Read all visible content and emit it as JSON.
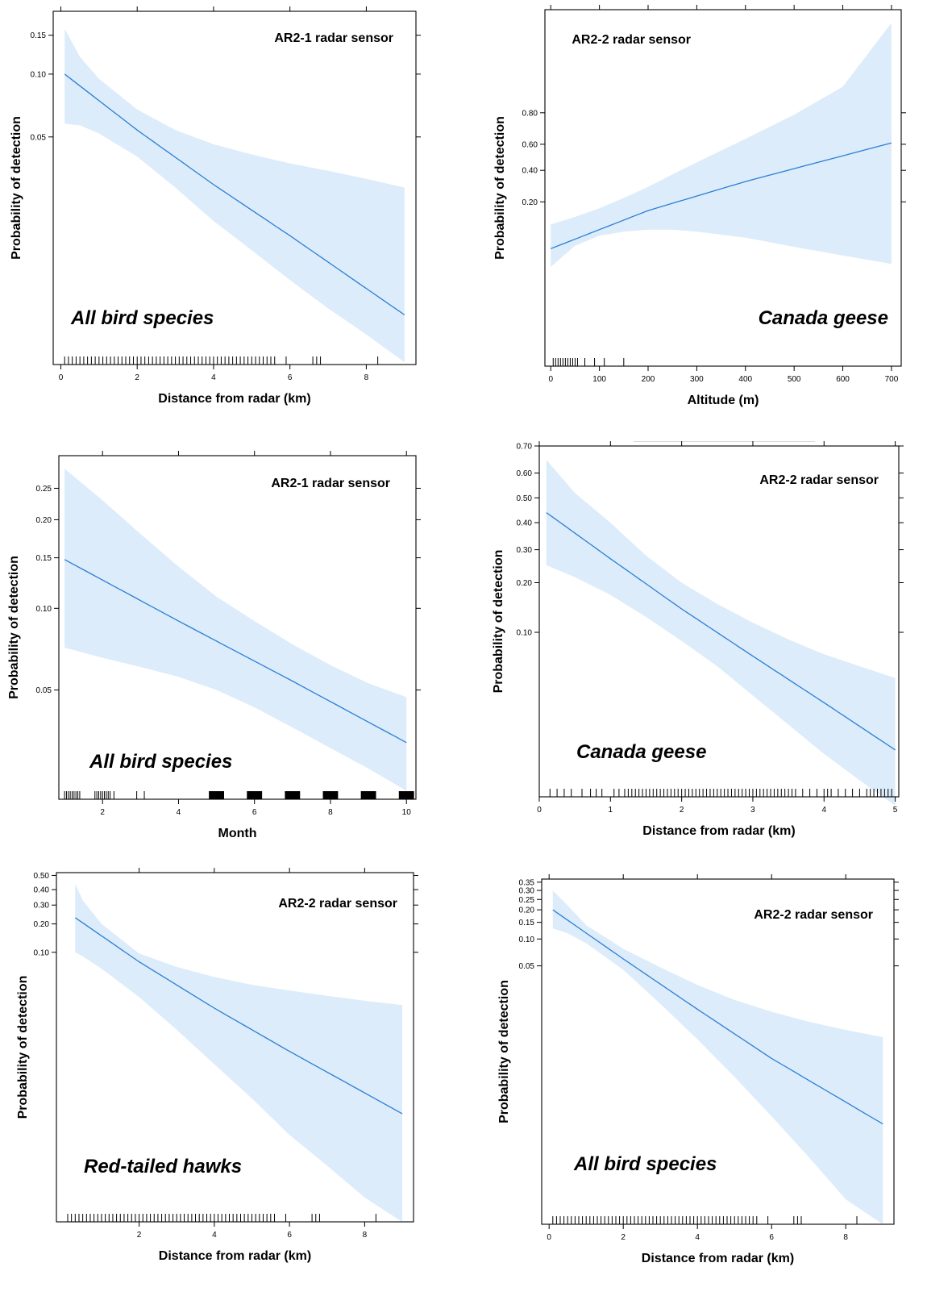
{
  "colors": {
    "band": "#dcecfa",
    "line": "#2b7fd4",
    "frame": "#000000",
    "text": "#000000"
  },
  "chart_data": [
    {
      "type": "line",
      "title": "AR2-1 radar sensor",
      "annotation": "All bird species",
      "xlabel": "Distance from radar (km)",
      "ylabel": "Probability of detection",
      "x_ticks": [
        0,
        2,
        4,
        6,
        8
      ],
      "y_ticks": [
        0.05,
        0.1,
        0.15
      ],
      "y_scale": "logit",
      "xlim": [
        -0.2,
        9.3
      ],
      "ylim": [
        0.0035,
        0.19
      ],
      "series": [
        {
          "x": [
            0.1,
            2,
            4,
            6,
            9
          ],
          "y": [
            0.1,
            0.054,
            0.029,
            0.016,
            0.0063
          ]
        }
      ],
      "ci_lower": {
        "x": [
          0.1,
          0.5,
          1,
          2,
          3,
          4,
          5,
          6,
          7,
          8,
          9
        ],
        "y": [
          0.058,
          0.057,
          0.052,
          0.04,
          0.028,
          0.019,
          0.0135,
          0.0095,
          0.0068,
          0.005,
          0.0036
        ]
      },
      "ci_upper": {
        "x": [
          0.1,
          0.5,
          1,
          2,
          3,
          4,
          5,
          6,
          7,
          8,
          9
        ],
        "y": [
          0.16,
          0.12,
          0.095,
          0.068,
          0.054,
          0.046,
          0.041,
          0.037,
          0.034,
          0.031,
          0.028
        ]
      },
      "rug": [
        0.1,
        0.2,
        0.3,
        0.4,
        0.5,
        0.6,
        0.7,
        0.8,
        0.9,
        1.0,
        1.1,
        1.2,
        1.3,
        1.4,
        1.5,
        1.6,
        1.7,
        1.8,
        1.9,
        2.0,
        2.1,
        2.2,
        2.3,
        2.4,
        2.5,
        2.6,
        2.7,
        2.8,
        2.9,
        3.0,
        3.1,
        3.2,
        3.3,
        3.4,
        3.5,
        3.6,
        3.7,
        3.8,
        3.9,
        4.0,
        4.1,
        4.2,
        4.3,
        4.4,
        4.5,
        4.6,
        4.7,
        4.8,
        4.9,
        5.0,
        5.1,
        5.2,
        5.3,
        5.4,
        5.5,
        5.6,
        5.9,
        6.6,
        6.7,
        6.8,
        8.3
      ],
      "grid": false,
      "legend": "none"
    },
    {
      "type": "line",
      "title": "AR2-2 radar sensor",
      "annotation": "Canada geese",
      "xlabel": "Altitude (m)",
      "ylabel": "Probability of detection",
      "x_ticks": [
        0,
        100,
        200,
        300,
        400,
        500,
        600,
        700
      ],
      "y_ticks": [
        0.2,
        0.4,
        0.6,
        0.8
      ],
      "y_scale": "logit",
      "xlim": [
        -12,
        720
      ],
      "ylim": [
        0.0015,
        0.99
      ],
      "series": [
        {
          "x": [
            0,
            200,
            400,
            700
          ],
          "y": [
            0.055,
            0.16,
            0.32,
            0.61
          ]
        }
      ],
      "ci_lower": {
        "x": [
          0,
          50,
          100,
          150,
          200,
          250,
          300,
          400,
          500,
          600,
          700
        ],
        "y": [
          0.032,
          0.06,
          0.08,
          0.09,
          0.095,
          0.095,
          0.09,
          0.076,
          0.058,
          0.045,
          0.035
        ]
      },
      "ci_upper": {
        "x": [
          0,
          50,
          100,
          150,
          200,
          250,
          300,
          400,
          500,
          600,
          700
        ],
        "y": [
          0.11,
          0.135,
          0.17,
          0.22,
          0.285,
          0.37,
          0.46,
          0.64,
          0.79,
          0.9,
          0.985
        ]
      },
      "rug": [
        5,
        10,
        15,
        20,
        25,
        30,
        35,
        40,
        45,
        50,
        55,
        70,
        90,
        110,
        150
      ],
      "grid": false,
      "legend": "none"
    },
    {
      "type": "line",
      "title": "AR2-1 radar sensor",
      "annotation": "All bird species",
      "xlabel": "Month",
      "ylabel": "Probability of detection",
      "x_ticks": [
        2,
        4,
        6,
        8,
        10
      ],
      "y_ticks": [
        0.05,
        0.1,
        0.15,
        0.2,
        0.25
      ],
      "y_scale": "logit",
      "xlim": [
        0.85,
        10.25
      ],
      "ylim": [
        0.019,
        0.31
      ],
      "series": [
        {
          "x": [
            1,
            4,
            7,
            10
          ],
          "y": [
            0.148,
            0.09,
            0.054,
            0.0315
          ]
        }
      ],
      "ci_lower": {
        "x": [
          1,
          2,
          3,
          4,
          5,
          6,
          7,
          8,
          9,
          10
        ],
        "y": [
          0.072,
          0.066,
          0.061,
          0.056,
          0.05,
          0.043,
          0.036,
          0.03,
          0.025,
          0.0205
        ]
      },
      "ci_upper": {
        "x": [
          1,
          2,
          3,
          4,
          5,
          6,
          7,
          8,
          9,
          10
        ],
        "y": [
          0.285,
          0.23,
          0.18,
          0.14,
          0.11,
          0.09,
          0.074,
          0.062,
          0.053,
          0.047
        ]
      },
      "rug": [
        1.0,
        1.05,
        1.1,
        1.15,
        1.2,
        1.25,
        1.3,
        1.35,
        1.4,
        1.8,
        1.85,
        1.9,
        1.95,
        2.0,
        2.05,
        2.1,
        2.15,
        2.2,
        2.3,
        2.9,
        3.1
      ],
      "rug_blocks": [
        [
          4.8,
          5.2
        ],
        [
          5.8,
          6.2
        ],
        [
          6.8,
          7.2
        ],
        [
          7.8,
          8.2
        ],
        [
          8.8,
          9.2
        ],
        [
          9.8,
          10.2
        ]
      ],
      "grid": false,
      "legend": "none"
    },
    {
      "type": "line",
      "title": "AR2-2 radar sensor",
      "annotation": "Canada geese",
      "xlabel": "Distance from radar (km)",
      "ylabel": "Probability of detection",
      "x_ticks": [
        0,
        1,
        2,
        3,
        4,
        5
      ],
      "y_ticks": [
        0.1,
        0.2,
        0.3,
        0.4,
        0.5,
        0.6,
        0.7
      ],
      "y_scale": "logit",
      "xlim": [
        0,
        5.05
      ],
      "ylim": [
        0.0075,
        0.7
      ],
      "series": [
        {
          "x": [
            0.1,
            1,
            2,
            3,
            4,
            5
          ],
          "y": [
            0.44,
            0.27,
            0.14,
            0.07,
            0.034,
            0.016
          ]
        }
      ],
      "ci_lower": {
        "x": [
          0.1,
          0.5,
          1,
          1.5,
          2,
          2.5,
          3,
          3.5,
          4,
          4.5,
          5
        ],
        "y": [
          0.25,
          0.215,
          0.17,
          0.125,
          0.088,
          0.06,
          0.038,
          0.024,
          0.015,
          0.0098,
          0.0065
        ]
      },
      "ci_upper": {
        "x": [
          0.1,
          0.5,
          1,
          1.5,
          2,
          2.5,
          3,
          3.5,
          4,
          4.5,
          5
        ],
        "y": [
          0.65,
          0.52,
          0.4,
          0.28,
          0.2,
          0.15,
          0.115,
          0.09,
          0.072,
          0.06,
          0.05
        ]
      },
      "rug": [
        0.15,
        0.25,
        0.35,
        0.45,
        0.6,
        0.72,
        0.8,
        0.88,
        1.05,
        1.12,
        1.2,
        1.25,
        1.3,
        1.35,
        1.4,
        1.45,
        1.5,
        1.55,
        1.6,
        1.65,
        1.7,
        1.75,
        1.8,
        1.85,
        1.9,
        1.95,
        2.0,
        2.05,
        2.1,
        2.15,
        2.2,
        2.25,
        2.3,
        2.35,
        2.4,
        2.45,
        2.5,
        2.55,
        2.6,
        2.65,
        2.7,
        2.75,
        2.8,
        2.85,
        2.9,
        2.95,
        3.0,
        3.05,
        3.1,
        3.15,
        3.2,
        3.25,
        3.3,
        3.35,
        3.4,
        3.45,
        3.5,
        3.55,
        3.6,
        3.7,
        3.8,
        3.9,
        4.0,
        4.05,
        4.1,
        4.2,
        4.3,
        4.4,
        4.5,
        4.6,
        4.65,
        4.7,
        4.75,
        4.8,
        4.85,
        4.9,
        4.95
      ],
      "grid": false,
      "legend": "none"
    },
    {
      "type": "line",
      "title": "AR2-2 radar sensor",
      "annotation": "Red-tailed hawks",
      "xlabel": "Distance from radar (km)",
      "ylabel": "Probability of detection",
      "x_ticks": [
        2,
        4,
        6,
        8
      ],
      "y_ticks": [
        0.1,
        0.2,
        0.3,
        0.4,
        0.5
      ],
      "y_scale": "logit",
      "xlim": [
        -0.2,
        9.3
      ],
      "ylim": [
        5e-05,
        0.52
      ],
      "series": [
        {
          "x": [
            0.3,
            2,
            4,
            6,
            9
          ],
          "y": [
            0.23,
            0.078,
            0.022,
            0.0065,
            0.0011
          ]
        }
      ],
      "ci_lower": {
        "x": [
          0.3,
          0.5,
          1,
          2,
          3,
          4,
          5,
          6,
          7,
          8,
          9
        ],
        "y": [
          0.1,
          0.09,
          0.065,
          0.03,
          0.012,
          0.0045,
          0.0017,
          0.0006,
          0.00025,
          0.0001,
          5e-05
        ]
      },
      "ci_upper": {
        "x": [
          0.3,
          0.5,
          1,
          2,
          3,
          4,
          5,
          6,
          7,
          8,
          9
        ],
        "y": [
          0.44,
          0.33,
          0.2,
          0.097,
          0.068,
          0.052,
          0.042,
          0.036,
          0.031,
          0.027,
          0.024
        ]
      },
      "rug": [
        0.1,
        0.2,
        0.3,
        0.4,
        0.5,
        0.6,
        0.7,
        0.8,
        0.9,
        1.0,
        1.1,
        1.2,
        1.3,
        1.4,
        1.5,
        1.6,
        1.7,
        1.8,
        1.9,
        2.0,
        2.1,
        2.2,
        2.3,
        2.4,
        2.5,
        2.6,
        2.7,
        2.8,
        2.9,
        3.0,
        3.1,
        3.2,
        3.3,
        3.4,
        3.5,
        3.6,
        3.7,
        3.8,
        3.9,
        4.0,
        4.1,
        4.2,
        4.3,
        4.4,
        4.5,
        4.6,
        4.7,
        4.8,
        4.9,
        5.0,
        5.1,
        5.2,
        5.3,
        5.4,
        5.5,
        5.6,
        5.9,
        6.6,
        6.7,
        6.8,
        8.3
      ],
      "grid": false,
      "legend": "none"
    },
    {
      "type": "line",
      "title": "AR2-2 radar sensor",
      "annotation": "All bird species",
      "xlabel": "Distance from radar (km)",
      "ylabel": "Probability of detection",
      "x_ticks": [
        0,
        2,
        4,
        6,
        8
      ],
      "y_ticks": [
        0.05,
        0.1,
        0.15,
        0.2,
        0.25,
        0.3,
        0.35
      ],
      "y_scale": "logit",
      "xlim": [
        -0.2,
        9.3
      ],
      "ylim": [
        4e-05,
        0.37
      ],
      "series": [
        {
          "x": [
            0.1,
            2,
            4,
            6,
            9
          ],
          "y": [
            0.2,
            0.06,
            0.0155,
            0.004,
            0.00065
          ]
        }
      ],
      "ci_lower": {
        "x": [
          0.1,
          0.5,
          1,
          2,
          3,
          4,
          5,
          6,
          7,
          8,
          9
        ],
        "y": [
          0.13,
          0.115,
          0.09,
          0.045,
          0.018,
          0.0068,
          0.0024,
          0.0008,
          0.00026,
          8e-05,
          4e-05
        ]
      },
      "ci_upper": {
        "x": [
          0.1,
          0.5,
          1,
          2,
          3,
          4,
          5,
          6,
          7,
          8,
          9
        ],
        "y": [
          0.3,
          0.22,
          0.14,
          0.078,
          0.048,
          0.03,
          0.02,
          0.0145,
          0.011,
          0.0088,
          0.0072
        ]
      },
      "rug": [
        0.1,
        0.2,
        0.3,
        0.4,
        0.5,
        0.6,
        0.7,
        0.8,
        0.9,
        1.0,
        1.1,
        1.2,
        1.3,
        1.4,
        1.5,
        1.6,
        1.7,
        1.8,
        1.9,
        2.0,
        2.1,
        2.2,
        2.3,
        2.4,
        2.5,
        2.6,
        2.7,
        2.8,
        2.9,
        3.0,
        3.1,
        3.2,
        3.3,
        3.4,
        3.5,
        3.6,
        3.7,
        3.8,
        3.9,
        4.0,
        4.1,
        4.2,
        4.3,
        4.4,
        4.5,
        4.6,
        4.7,
        4.8,
        4.9,
        5.0,
        5.1,
        5.2,
        5.3,
        5.4,
        5.5,
        5.6,
        5.9,
        6.6,
        6.7,
        6.8,
        8.3
      ],
      "grid": false,
      "legend": "none"
    }
  ]
}
